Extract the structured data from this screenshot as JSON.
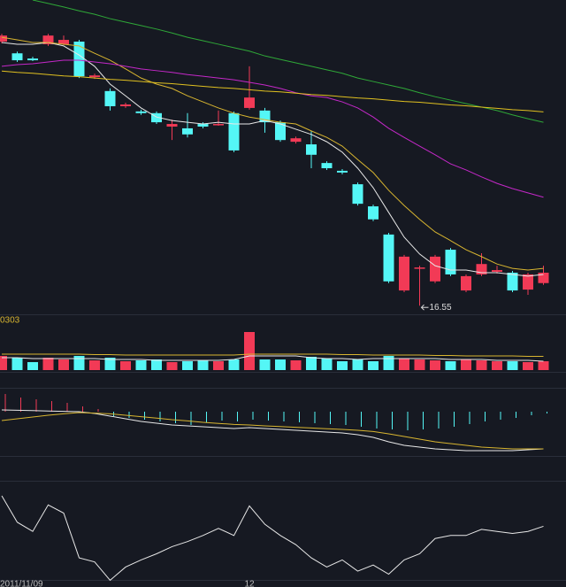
{
  "chart_data": [
    {
      "type": "candlestick",
      "ylim": [
        16.35,
        23.6
      ],
      "up_color": "#f23a56",
      "down_color": "#54f6f6",
      "categories": [
        "2011/11/09",
        null,
        null,
        null,
        null,
        null,
        null,
        null,
        null,
        null,
        null,
        null,
        null,
        null,
        null,
        null,
        "12",
        null,
        null,
        null,
        null,
        null,
        null,
        null,
        null,
        null,
        null,
        null,
        null,
        null,
        null,
        null,
        null,
        null,
        null,
        null
      ],
      "open": [
        22.64,
        22.37,
        22.25,
        22.58,
        22.58,
        22.64,
        21.82,
        21.5,
        21.15,
        21.03,
        20.99,
        20.68,
        20.64,
        20.74,
        20.72,
        20.99,
        21.11,
        21.05,
        20.78,
        20.33,
        20.27,
        19.84,
        19.66,
        19.35,
        18.84,
        18.19,
        16.9,
        17.41,
        17.11,
        17.84,
        16.9,
        17.27,
        17.33,
        17.31,
        16.92,
        17.07
      ],
      "high": [
        22.82,
        22.41,
        22.29,
        22.82,
        22.78,
        22.68,
        21.9,
        21.56,
        21.23,
        21.07,
        21.03,
        20.84,
        20.99,
        20.78,
        21.05,
        21.03,
        22.07,
        21.11,
        20.82,
        20.45,
        20.58,
        19.88,
        19.7,
        19.39,
        18.88,
        18.23,
        17.72,
        17.47,
        17.72,
        17.88,
        17.27,
        17.76,
        17.47,
        17.35,
        17.31,
        17.47
      ],
      "low": [
        22.6,
        22.17,
        22.19,
        22.54,
        22.56,
        21.8,
        21.78,
        21.05,
        21.11,
        20.95,
        20.74,
        20.37,
        20.43,
        20.64,
        20.7,
        20.09,
        21.07,
        20.54,
        20.33,
        20.29,
        19.72,
        19.68,
        19.58,
        18.86,
        18.5,
        17.07,
        16.86,
        16.55,
        17.07,
        17.23,
        16.86,
        17.23,
        17.29,
        16.86,
        16.8,
        17.03
      ],
      "close": [
        22.78,
        22.21,
        22.21,
        22.78,
        22.68,
        21.84,
        21.86,
        21.15,
        21.19,
        20.99,
        20.78,
        20.74,
        20.5,
        20.68,
        20.74,
        20.13,
        21.35,
        20.78,
        20.37,
        20.41,
        20.03,
        19.72,
        19.62,
        18.9,
        18.54,
        17.11,
        17.68,
        17.43,
        17.68,
        17.27,
        17.23,
        17.51,
        17.37,
        16.9,
        17.27,
        17.31
      ],
      "low_label": {
        "value": 16.55,
        "label": "16.55"
      },
      "series": [
        {
          "color": "#e8e8e8",
          "values": [
            22.62,
            22.58,
            22.58,
            22.62,
            22.54,
            22.33,
            22.07,
            21.66,
            21.39,
            21.11,
            20.9,
            20.82,
            20.78,
            20.74,
            20.78,
            20.74,
            20.74,
            20.82,
            20.74,
            20.62,
            20.5,
            20.33,
            20.09,
            19.72,
            19.27,
            18.7,
            18.13,
            17.74,
            17.47,
            17.37,
            17.37,
            17.31,
            17.31,
            17.27,
            17.23,
            17.27
          ]
        },
        {
          "color": "#d8b530",
          "values": [
            22.74,
            22.68,
            22.62,
            22.62,
            22.58,
            22.54,
            22.37,
            22.21,
            22.01,
            21.8,
            21.66,
            21.56,
            21.39,
            21.25,
            21.11,
            20.99,
            20.9,
            20.84,
            20.78,
            20.74,
            20.58,
            20.43,
            20.23,
            19.92,
            19.62,
            19.21,
            18.86,
            18.54,
            18.25,
            18.05,
            17.84,
            17.68,
            17.51,
            17.41,
            17.37,
            17.41
          ]
        },
        {
          "color": "#c428c8",
          "values": [
            22.07,
            22.11,
            22.13,
            22.17,
            22.21,
            22.21,
            22.17,
            22.13,
            22.07,
            22.01,
            21.97,
            21.93,
            21.88,
            21.84,
            21.8,
            21.76,
            21.7,
            21.64,
            21.56,
            21.46,
            21.39,
            21.35,
            21.25,
            21.11,
            20.9,
            20.64,
            20.43,
            20.23,
            20.03,
            19.82,
            19.68,
            19.52,
            19.37,
            19.25,
            19.15,
            19.05
          ]
        },
        {
          "color": "#2fa838",
          "values": [
            null,
            null,
            23.6,
            23.52,
            23.44,
            23.35,
            23.27,
            23.17,
            23.09,
            23.01,
            22.93,
            22.84,
            22.74,
            22.66,
            22.58,
            22.5,
            22.42,
            22.31,
            22.23,
            22.15,
            22.07,
            21.99,
            21.91,
            21.8,
            21.72,
            21.64,
            21.56,
            21.46,
            21.37,
            21.29,
            21.21,
            21.13,
            21.05,
            20.95,
            20.86,
            20.78
          ]
        },
        {
          "color": "#e0c020",
          "values": [
            21.96,
            21.93,
            21.91,
            21.88,
            21.85,
            21.83,
            21.8,
            21.77,
            21.75,
            21.72,
            21.69,
            21.67,
            21.64,
            21.61,
            21.58,
            21.56,
            21.53,
            21.5,
            21.48,
            21.45,
            21.42,
            21.4,
            21.37,
            21.34,
            21.32,
            21.29,
            21.26,
            21.24,
            21.21,
            21.18,
            21.16,
            21.13,
            21.1,
            21.07,
            21.05,
            21.02
          ]
        }
      ]
    },
    {
      "type": "bar",
      "title": "0303",
      "ylim": [
        0,
        60
      ],
      "values": [
        16,
        14,
        9,
        14,
        12,
        16,
        11,
        14,
        10,
        11,
        12,
        9,
        10,
        11,
        10,
        12,
        43,
        12,
        12,
        11,
        15,
        13,
        10,
        12,
        10,
        16,
        13,
        12,
        11,
        10,
        12,
        11,
        10,
        10,
        9,
        10
      ],
      "series": [
        {
          "color": "#d8b530",
          "values": [
            18,
            18,
            18,
            18,
            18,
            18,
            17.5,
            17.5,
            17,
            17,
            17,
            17,
            17,
            17,
            17,
            17,
            18,
            18,
            18,
            18,
            18,
            18,
            17.5,
            17.5,
            17,
            17,
            17,
            17,
            16.5,
            16.5,
            16,
            16,
            16,
            16,
            15.5,
            15.5
          ]
        },
        {
          "color": "#e8e8e8",
          "values": [
            14,
            14,
            13,
            13,
            13,
            13,
            13,
            12,
            12,
            12,
            11,
            11,
            11,
            11,
            11,
            12,
            16,
            16,
            16,
            16,
            14,
            13,
            13,
            12,
            13,
            13,
            13,
            13,
            13,
            12,
            12,
            12,
            11,
            11,
            11,
            10
          ]
        }
      ]
    },
    {
      "type": "macd",
      "ylim": [
        -2.75,
        1.25
      ],
      "up_color": "#f23a56",
      "down_color": "#54f6f6",
      "values": [
        1.0,
        0.8,
        0.7,
        0.6,
        0.5,
        0.3,
        0.15,
        -0.25,
        -0.35,
        -0.45,
        -0.55,
        -0.65,
        -0.75,
        -0.6,
        -0.5,
        -0.55,
        -0.45,
        -0.5,
        -0.55,
        -0.6,
        -0.65,
        -0.7,
        -0.75,
        -0.85,
        -0.95,
        -1.0,
        -1.05,
        -1.0,
        -0.95,
        -0.85,
        -0.7,
        -0.55,
        -0.45,
        -0.35,
        -0.2,
        -0.1
      ],
      "series": [
        {
          "color": "#e8e8e8",
          "values": [
            0.1,
            0.08,
            0.06,
            0.04,
            0.02,
            0,
            -0.1,
            -0.25,
            -0.4,
            -0.55,
            -0.65,
            -0.75,
            -0.8,
            -0.85,
            -0.9,
            -0.95,
            -0.9,
            -0.95,
            -1.0,
            -1.05,
            -1.1,
            -1.15,
            -1.2,
            -1.3,
            -1.45,
            -1.7,
            -1.9,
            -2.0,
            -2.1,
            -2.15,
            -2.2,
            -2.2,
            -2.2,
            -2.2,
            -2.15,
            -2.1
          ]
        },
        {
          "color": "#d8b530",
          "values": [
            -0.5,
            -0.4,
            -0.3,
            -0.2,
            -0.12,
            -0.05,
            -0.08,
            -0.12,
            -0.2,
            -0.28,
            -0.36,
            -0.45,
            -0.52,
            -0.6,
            -0.66,
            -0.72,
            -0.75,
            -0.8,
            -0.84,
            -0.88,
            -0.92,
            -0.96,
            -1.0,
            -1.05,
            -1.12,
            -1.25,
            -1.4,
            -1.55,
            -1.7,
            -1.8,
            -1.9,
            -2.0,
            -2.05,
            -2.1,
            -2.1,
            -2.1
          ]
        }
      ]
    },
    {
      "type": "line",
      "ylim": [
        0,
        100
      ],
      "series": [
        {
          "color": "#e8e8e8",
          "values": [
            87,
            61,
            52,
            78,
            70,
            26,
            22,
            4,
            17,
            24,
            30,
            37,
            42,
            48,
            55,
            48,
            77,
            59,
            48,
            39,
            26,
            17,
            24,
            13,
            19,
            10,
            24,
            30,
            45,
            48,
            48,
            54,
            52,
            50,
            52,
            57
          ]
        }
      ]
    }
  ]
}
